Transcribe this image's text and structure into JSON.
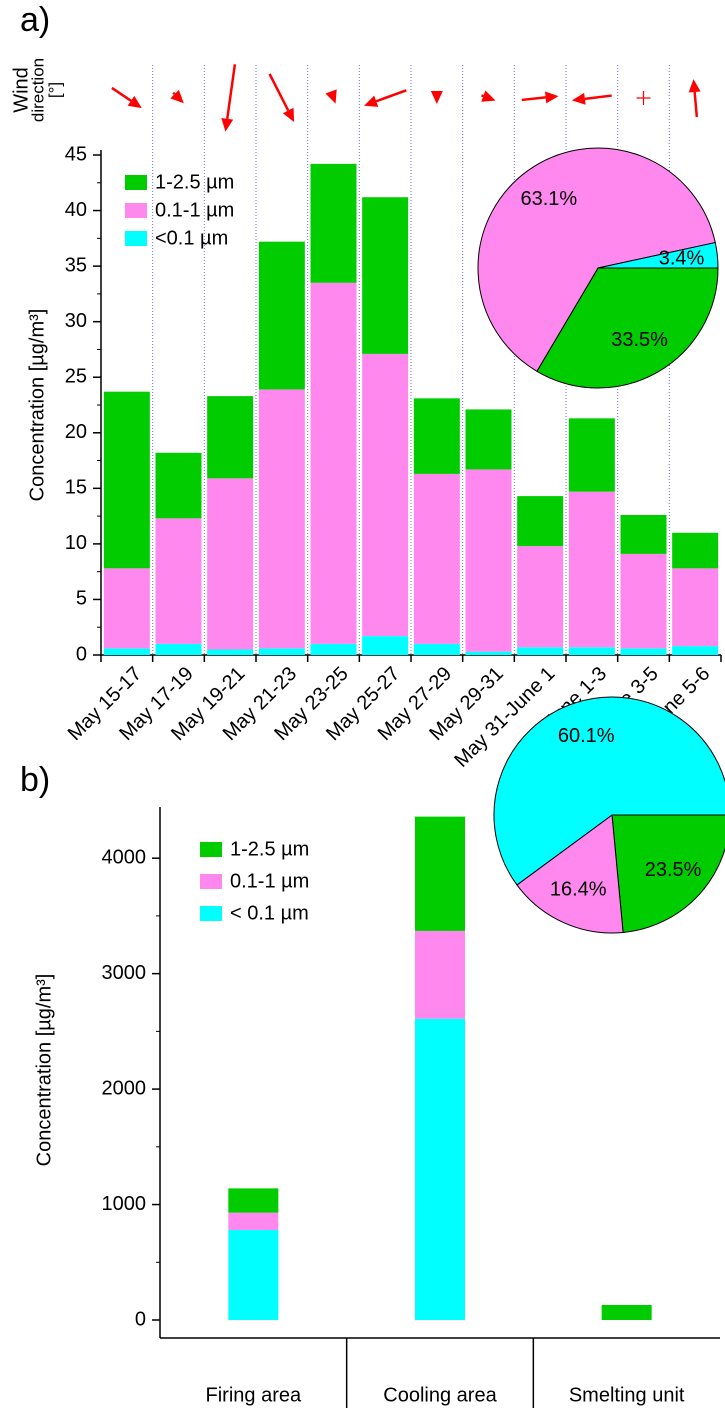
{
  "chart_data": [
    {
      "type": "bar",
      "stacked": true,
      "panel_label": "a)",
      "ylabel": "Concentration [µg/m³]",
      "categories": [
        "May 15-17",
        "May 17-19",
        "May 19-21",
        "May 21-23",
        "May 23-25",
        "May 25-27",
        "May 27-29",
        "May 29-31",
        "May 31-June 1",
        "June 1-3",
        "June 3-5",
        "June 5-6"
      ],
      "series": [
        {
          "name": "<0.1 µm",
          "color": "#00ffff",
          "values": [
            0.6,
            1.0,
            0.5,
            0.6,
            1.0,
            1.7,
            1.0,
            0.3,
            0.7,
            0.7,
            0.6,
            0.8
          ]
        },
        {
          "name": "0.1-1 µm",
          "color": "#ff88ee",
          "values": [
            7.2,
            11.3,
            15.4,
            23.3,
            32.5,
            25.4,
            15.3,
            16.4,
            9.1,
            14.0,
            8.5,
            7.0
          ]
        },
        {
          "name": "1-2.5 µm",
          "color": "#00cc00",
          "values": [
            15.9,
            5.9,
            7.4,
            13.3,
            10.7,
            14.1,
            6.8,
            5.4,
            4.5,
            6.6,
            3.5,
            3.2
          ]
        }
      ],
      "ylim": [
        0,
        45
      ],
      "yticks": [
        0,
        5,
        10,
        15,
        20,
        25,
        30,
        35,
        40,
        45
      ],
      "wind": {
        "label": [
          "Wind",
          "direction",
          "[°]"
        ],
        "color": "#ff0000",
        "direction": [
          304,
          315,
          8,
          333,
          340,
          70,
          0,
          290,
          264,
          83,
          null,
          175
        ],
        "speed": [
          36,
          15,
          68,
          54,
          12,
          45,
          12,
          15,
          37,
          40,
          null,
          38
        ]
      },
      "inset_pie": {
        "values": [
          33.5,
          63.1,
          3.4
        ],
        "value_labels": [
          "33.5%",
          "63.1%",
          "3.4%"
        ],
        "colors": [
          "#00cc00",
          "#ff88ee",
          "#00ffff"
        ]
      }
    },
    {
      "type": "bar",
      "stacked": true,
      "panel_label": "b)",
      "ylabel": "Concentration [µg/m³]",
      "categories": [
        "Firing area",
        "Cooling area",
        "Smelting unit"
      ],
      "series": [
        {
          "name": "< 0.1 µm",
          "color": "#00ffff",
          "values": [
            780,
            2610,
            0
          ]
        },
        {
          "name": "0.1-1 µm",
          "color": "#ff88ee",
          "values": [
            150,
            760,
            0
          ]
        },
        {
          "name": "1-2.5 µm",
          "color": "#00cc00",
          "values": [
            210,
            990,
            130
          ]
        }
      ],
      "ylim": [
        0,
        4400
      ],
      "yticks": [
        0,
        1000,
        2000,
        3000,
        4000
      ],
      "inset_pie": {
        "values": [
          23.5,
          16.4,
          60.1
        ],
        "value_labels": [
          "23.5%",
          "16.4%",
          "60.1%"
        ],
        "colors": [
          "#00cc00",
          "#ff88ee",
          "#00ffff"
        ]
      }
    }
  ]
}
